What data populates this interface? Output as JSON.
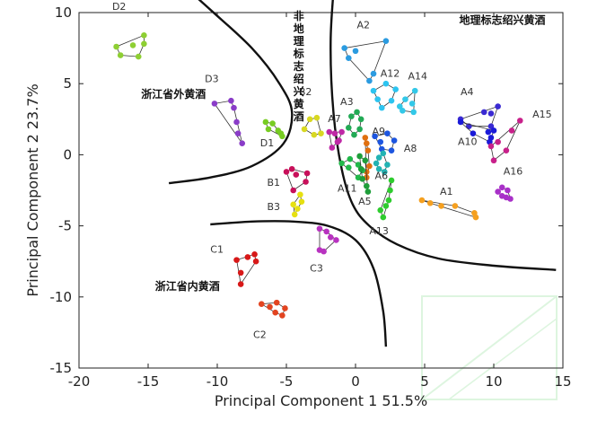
{
  "chart_data": {
    "type": "scatter",
    "xlabel": "Principal Component 1 51.5%",
    "ylabel": "Principal Component 2 23.7%",
    "xlim": [
      -20,
      15
    ],
    "ylim": [
      -15,
      10
    ],
    "xticks": [
      -20,
      -15,
      -10,
      -5,
      0,
      5,
      10,
      15
    ],
    "yticks": [
      -15,
      -10,
      -5,
      0,
      5,
      10
    ],
    "region_labels": [
      {
        "text": "非地理标志绍兴黄酒",
        "at": [
          -4.5,
          9.5
        ],
        "vertical": true
      },
      {
        "text": "地理标志绍兴黄酒",
        "at": [
          7.5,
          9.2
        ]
      },
      {
        "text": "浙江省外黄酒",
        "at": [
          -15.5,
          4.0
        ]
      },
      {
        "text": "浙江省内黄酒",
        "at": [
          -14.5,
          -9.5
        ]
      }
    ],
    "boundaries": [
      [
        [
          -13.5,
          12.8
        ],
        [
          -10.5,
          10.2
        ],
        [
          -7.5,
          7.5
        ],
        [
          -5.5,
          5.0
        ],
        [
          -4.6,
          3.0
        ],
        [
          -5.2,
          0.8
        ],
        [
          -7.5,
          -0.8
        ],
        [
          -10.5,
          -1.6
        ],
        [
          -13.5,
          -2.0
        ]
      ],
      [
        [
          -1.5,
          12.6
        ],
        [
          -1.8,
          8.0
        ],
        [
          -1.6,
          3.0
        ],
        [
          -1.0,
          -1.0
        ],
        [
          -0.2,
          -3.5
        ],
        [
          1.0,
          -5.0
        ],
        [
          3.0,
          -6.3
        ],
        [
          6.0,
          -7.3
        ],
        [
          10.0,
          -7.8
        ],
        [
          14.5,
          -8.1
        ]
      ],
      [
        [
          -10.5,
          -4.9
        ],
        [
          -7.5,
          -4.7
        ],
        [
          -4.5,
          -4.7
        ],
        [
          -2.0,
          -5.0
        ],
        [
          0.0,
          -6.0
        ],
        [
          1.3,
          -8.0
        ],
        [
          2.0,
          -11.0
        ],
        [
          2.2,
          -13.5
        ]
      ]
    ],
    "series": [
      {
        "name": "D2",
        "color": "#8ecf33",
        "label_at": [
          -17.6,
          10.2
        ],
        "points": [
          [
            -17.3,
            7.6
          ],
          [
            -17.0,
            7.0
          ],
          [
            -16.1,
            7.7
          ],
          [
            -15.7,
            6.9
          ],
          [
            -15.3,
            7.8
          ],
          [
            -15.3,
            8.4
          ]
        ]
      },
      {
        "name": "D3",
        "color": "#8a3cc8",
        "label_at": [
          -10.9,
          5.1
        ],
        "points": [
          [
            -10.2,
            3.6
          ],
          [
            -9.0,
            3.8
          ],
          [
            -8.8,
            3.3
          ],
          [
            -8.6,
            2.3
          ],
          [
            -8.5,
            1.5
          ],
          [
            -8.2,
            0.8
          ]
        ]
      },
      {
        "name": "D1",
        "color": "#77cc22",
        "label_at": [
          -6.9,
          0.6
        ],
        "points": [
          [
            -6.5,
            2.3
          ],
          [
            -6.3,
            1.8
          ],
          [
            -6.0,
            2.2
          ],
          [
            -5.6,
            1.7
          ],
          [
            -5.4,
            1.5
          ],
          [
            -5.3,
            1.3
          ]
        ]
      },
      {
        "name": "B2",
        "color": "#d8d822",
        "label_at": [
          -4.1,
          4.2
        ],
        "points": [
          [
            -3.7,
            1.8
          ],
          [
            -3.3,
            2.5
          ],
          [
            -2.8,
            2.6
          ],
          [
            -2.5,
            1.5
          ],
          [
            -3.0,
            1.4
          ]
        ]
      },
      {
        "name": "B1",
        "color": "#c8105a",
        "label_at": [
          -6.4,
          -2.2
        ],
        "points": [
          [
            -5.0,
            -1.2
          ],
          [
            -4.6,
            -1.0
          ],
          [
            -4.3,
            -1.4
          ],
          [
            -3.5,
            -1.3
          ],
          [
            -3.6,
            -1.9
          ],
          [
            -4.5,
            -2.5
          ]
        ]
      },
      {
        "name": "B3",
        "color": "#e6e010",
        "label_at": [
          -6.4,
          -3.9
        ],
        "points": [
          [
            -4.5,
            -3.5
          ],
          [
            -4.2,
            -3.8
          ],
          [
            -4.4,
            -4.2
          ],
          [
            -3.9,
            -3.3
          ],
          [
            -4.0,
            -2.8
          ]
        ]
      },
      {
        "name": "C1",
        "color": "#d81818",
        "label_at": [
          -10.5,
          -6.9
        ],
        "points": [
          [
            -8.6,
            -7.4
          ],
          [
            -8.3,
            -8.3
          ],
          [
            -8.3,
            -9.1
          ],
          [
            -7.8,
            -7.2
          ],
          [
            -7.3,
            -7.0
          ],
          [
            -7.2,
            -7.5
          ]
        ]
      },
      {
        "name": "C2",
        "color": "#e24420",
        "label_at": [
          -7.4,
          -12.9
        ],
        "points": [
          [
            -6.8,
            -10.5
          ],
          [
            -6.2,
            -10.7
          ],
          [
            -5.8,
            -11.1
          ],
          [
            -5.3,
            -11.3
          ],
          [
            -5.1,
            -10.8
          ],
          [
            -5.7,
            -10.4
          ]
        ]
      },
      {
        "name": "C3",
        "color": "#b832c0",
        "label_at": [
          -3.3,
          -8.2
        ],
        "points": [
          [
            -2.6,
            -5.2
          ],
          [
            -2.1,
            -5.4
          ],
          [
            -1.8,
            -5.8
          ],
          [
            -1.4,
            -6.0
          ],
          [
            -2.3,
            -6.8
          ],
          [
            -2.6,
            -6.7
          ]
        ]
      },
      {
        "name": "A2",
        "color": "#2b9be0",
        "label_at": [
          0.1,
          8.9
        ],
        "points": [
          [
            -0.8,
            7.5
          ],
          [
            -0.5,
            6.8
          ],
          [
            0.0,
            7.3
          ],
          [
            1.0,
            5.2
          ],
          [
            1.3,
            5.7
          ],
          [
            2.2,
            8.0
          ]
        ]
      },
      {
        "name": "A12",
        "color": "#2cc4f0",
        "label_at": [
          1.8,
          5.5
        ],
        "points": [
          [
            1.3,
            4.5
          ],
          [
            1.6,
            3.9
          ],
          [
            1.9,
            3.3
          ],
          [
            2.6,
            3.8
          ],
          [
            2.9,
            4.6
          ],
          [
            2.2,
            5.0
          ]
        ]
      },
      {
        "name": "A14",
        "color": "#33c8e8",
        "label_at": [
          3.8,
          5.3
        ],
        "points": [
          [
            3.2,
            3.4
          ],
          [
            3.6,
            3.9
          ],
          [
            4.1,
            3.6
          ],
          [
            4.3,
            4.5
          ],
          [
            4.2,
            3.0
          ],
          [
            3.4,
            3.1
          ]
        ]
      },
      {
        "name": "A3",
        "color": "#22aa55",
        "label_at": [
          -1.1,
          3.5
        ],
        "points": [
          [
            -0.3,
            2.7
          ],
          [
            0.1,
            3.0
          ],
          [
            0.4,
            2.5
          ],
          [
            0.3,
            1.8
          ],
          [
            -0.1,
            1.4
          ],
          [
            -0.5,
            1.9
          ]
        ]
      },
      {
        "name": "A7",
        "color": "#bf28a6",
        "label_at": [
          -2.0,
          2.3
        ],
        "points": [
          [
            -1.9,
            1.6
          ],
          [
            -1.5,
            1.5
          ],
          [
            -1.0,
            1.6
          ],
          [
            -1.2,
            1.0
          ],
          [
            -1.7,
            0.5
          ],
          [
            -1.3,
            0.9
          ]
        ]
      },
      {
        "name": "A9",
        "color": "#e07010",
        "label_at": [
          1.2,
          1.4
        ],
        "points": [
          [
            0.7,
            1.2
          ],
          [
            0.8,
            0.8
          ],
          [
            0.9,
            0.3
          ],
          [
            1.0,
            -0.8
          ],
          [
            0.8,
            -1.2
          ],
          [
            0.8,
            -1.6
          ]
        ]
      },
      {
        "name": "A8",
        "color": "#1c55e0",
        "label_at": [
          3.5,
          0.2
        ],
        "points": [
          [
            1.4,
            1.3
          ],
          [
            1.8,
            0.9
          ],
          [
            2.3,
            1.5
          ],
          [
            2.8,
            1.0
          ],
          [
            2.6,
            0.3
          ],
          [
            1.9,
            0.4
          ]
        ]
      },
      {
        "name": "A6",
        "color": "#22b3b3",
        "label_at": [
          1.4,
          -1.7
        ],
        "points": [
          [
            1.5,
            -0.6
          ],
          [
            1.7,
            -0.2
          ],
          [
            2.0,
            0.1
          ],
          [
            2.3,
            -0.7
          ],
          [
            2.1,
            -1.2
          ],
          [
            1.7,
            -1.0
          ]
        ]
      },
      {
        "name": "A11",
        "color": "#22b84a",
        "label_at": [
          -1.3,
          -2.6
        ],
        "points": [
          [
            -1.0,
            -0.6
          ],
          [
            -0.5,
            -0.9
          ],
          [
            0.2,
            -0.7
          ],
          [
            0.2,
            -1.6
          ],
          [
            0.5,
            -1.1
          ],
          [
            -0.4,
            -0.3
          ]
        ]
      },
      {
        "name": "A5",
        "color": "#1e9e3a",
        "label_at": [
          0.2,
          -3.5
        ],
        "points": [
          [
            0.5,
            -1.7
          ],
          [
            0.8,
            -2.2
          ],
          [
            0.9,
            -2.6
          ],
          [
            0.4,
            -1.0
          ],
          [
            0.7,
            -0.4
          ],
          [
            0.3,
            -0.1
          ]
        ]
      },
      {
        "name": "A13",
        "color": "#2ecc2e",
        "label_at": [
          1.0,
          -5.6
        ],
        "points": [
          [
            1.8,
            -3.9
          ],
          [
            2.0,
            -4.4
          ],
          [
            2.2,
            -3.6
          ],
          [
            2.4,
            -3.2
          ],
          [
            2.5,
            -2.5
          ],
          [
            2.6,
            -1.8
          ]
        ]
      },
      {
        "name": "A4",
        "color": "#3a2ad2",
        "label_at": [
          7.6,
          4.2
        ],
        "points": [
          [
            7.6,
            2.5
          ],
          [
            8.2,
            2.0
          ],
          [
            9.3,
            3.0
          ],
          [
            9.8,
            2.9
          ],
          [
            10.3,
            3.4
          ],
          [
            9.8,
            2.0
          ]
        ]
      },
      {
        "name": "A10",
        "color": "#1a1ad8",
        "label_at": [
          7.4,
          0.7
        ],
        "points": [
          [
            7.6,
            2.3
          ],
          [
            8.5,
            1.5
          ],
          [
            9.6,
            1.6
          ],
          [
            9.8,
            1.2
          ],
          [
            10.0,
            1.7
          ],
          [
            9.7,
            0.9
          ]
        ]
      },
      {
        "name": "A15",
        "color": "#c8208a",
        "label_at": [
          12.8,
          2.6
        ],
        "points": [
          [
            9.8,
            0.6
          ],
          [
            10.3,
            0.9
          ],
          [
            10.0,
            -0.4
          ],
          [
            11.3,
            1.7
          ],
          [
            11.9,
            2.4
          ],
          [
            10.9,
            0.3
          ]
        ]
      },
      {
        "name": "A16",
        "color": "#a830c8",
        "label_at": [
          10.7,
          -1.4
        ],
        "points": [
          [
            10.3,
            -2.6
          ],
          [
            10.6,
            -2.9
          ],
          [
            10.9,
            -3.0
          ],
          [
            11.2,
            -3.1
          ],
          [
            11.0,
            -2.5
          ],
          [
            10.6,
            -2.3
          ]
        ]
      },
      {
        "name": "A1",
        "color": "#f5a020",
        "label_at": [
          6.1,
          -2.8
        ],
        "points": [
          [
            4.8,
            -3.2
          ],
          [
            5.4,
            -3.4
          ],
          [
            6.2,
            -3.6
          ],
          [
            7.2,
            -3.6
          ],
          [
            8.6,
            -4.1
          ],
          [
            8.7,
            -4.4
          ]
        ]
      }
    ]
  }
}
